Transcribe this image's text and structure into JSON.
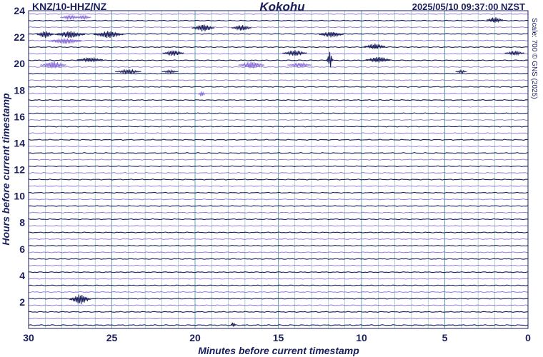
{
  "chart_data": {
    "type": "helicorder",
    "station": "KNZ/10-HHZ/NZ",
    "title": "Kokohu",
    "timestamp": "2025/05/10 09:37:00 NZST",
    "scale_note": "Scale: 700 © GNS (2025)",
    "xlabel": "Minutes before current timestamp",
    "ylabel": "Hours before current timestamp",
    "x_ticks": [
      "30",
      "25",
      "20",
      "15",
      "10",
      "5",
      "0"
    ],
    "y_ticks": [
      "24",
      "22",
      "20",
      "18",
      "16",
      "14",
      "12",
      "10",
      "8",
      "6",
      "4",
      "2"
    ],
    "xlim": [
      30,
      0
    ],
    "ylim": [
      0,
      24
    ],
    "grid": true,
    "trace_interval_minutes": 30,
    "colors": {
      "dark_trace": "#1a1f5c",
      "light_trace": "#8a6fd8",
      "grid": "#2e8b8b",
      "text": "#1a1f5c"
    },
    "events": [
      {
        "hours": 23.5,
        "minutes": 27.5,
        "amp": 3,
        "width": 1.2,
        "tone": "light"
      },
      {
        "hours": 23.5,
        "minutes": 26.7,
        "amp": 3,
        "width": 0.9,
        "tone": "light"
      },
      {
        "hours": 23.3,
        "minutes": 2.0,
        "amp": 4,
        "width": 1.0,
        "tone": "dark"
      },
      {
        "hours": 22.7,
        "minutes": 19.5,
        "amp": 5,
        "width": 1.4,
        "tone": "dark"
      },
      {
        "hours": 22.7,
        "minutes": 17.2,
        "amp": 4,
        "width": 1.2,
        "tone": "dark"
      },
      {
        "hours": 22.2,
        "minutes": 29.0,
        "amp": 5,
        "width": 1.0,
        "tone": "dark"
      },
      {
        "hours": 22.2,
        "minutes": 27.5,
        "amp": 5,
        "width": 1.8,
        "tone": "dark"
      },
      {
        "hours": 22.2,
        "minutes": 25.2,
        "amp": 5,
        "width": 1.8,
        "tone": "dark"
      },
      {
        "hours": 22.2,
        "minutes": 11.8,
        "amp": 4,
        "width": 1.5,
        "tone": "dark"
      },
      {
        "hours": 21.7,
        "minutes": 27.8,
        "amp": 4,
        "width": 2.0,
        "tone": "light"
      },
      {
        "hours": 21.3,
        "minutes": 9.2,
        "amp": 4,
        "width": 1.3,
        "tone": "dark"
      },
      {
        "hours": 20.8,
        "minutes": 21.3,
        "amp": 4,
        "width": 1.3,
        "tone": "dark"
      },
      {
        "hours": 20.8,
        "minutes": 14.0,
        "amp": 4,
        "width": 1.5,
        "tone": "dark"
      },
      {
        "hours": 20.8,
        "minutes": 0.8,
        "amp": 3,
        "width": 1.2,
        "tone": "dark"
      },
      {
        "hours": 20.3,
        "minutes": 26.3,
        "amp": 3,
        "width": 1.6,
        "tone": "dark"
      },
      {
        "hours": 20.3,
        "minutes": 11.9,
        "amp": 12,
        "width": 0.4,
        "tone": "dark"
      },
      {
        "hours": 20.3,
        "minutes": 9.0,
        "amp": 4,
        "width": 1.5,
        "tone": "dark"
      },
      {
        "hours": 19.9,
        "minutes": 28.5,
        "amp": 5,
        "width": 1.6,
        "tone": "light"
      },
      {
        "hours": 19.9,
        "minutes": 16.6,
        "amp": 5,
        "width": 1.6,
        "tone": "light"
      },
      {
        "hours": 19.9,
        "minutes": 13.7,
        "amp": 3,
        "width": 1.5,
        "tone": "light"
      },
      {
        "hours": 19.4,
        "minutes": 24.0,
        "amp": 3,
        "width": 1.6,
        "tone": "dark"
      },
      {
        "hours": 19.4,
        "minutes": 21.5,
        "amp": 2,
        "width": 1.0,
        "tone": "dark"
      },
      {
        "hours": 19.4,
        "minutes": 4.0,
        "amp": 2,
        "width": 0.7,
        "tone": "dark"
      },
      {
        "hours": 17.7,
        "minutes": 19.6,
        "amp": 4,
        "width": 0.4,
        "tone": "light"
      },
      {
        "hours": 2.2,
        "minutes": 26.9,
        "amp": 7,
        "width": 1.3,
        "tone": "dark"
      },
      {
        "hours": 0.3,
        "minutes": 17.7,
        "amp": 4,
        "width": 0.3,
        "tone": "dark"
      }
    ]
  }
}
